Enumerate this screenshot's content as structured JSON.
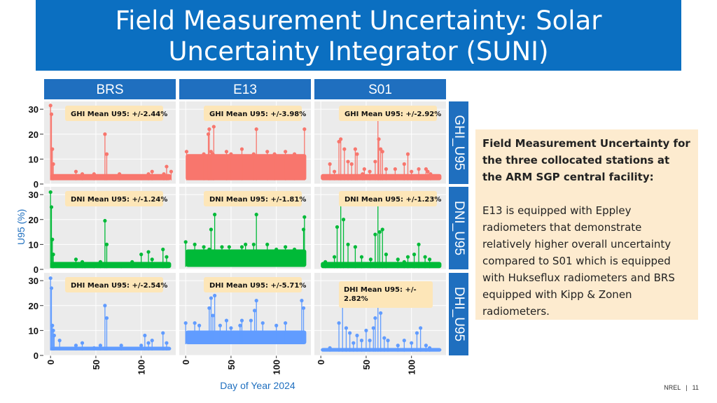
{
  "slide": {
    "title_line1": "Field Measurement Uncertainty: Solar",
    "title_line2": "Uncertainty Integrator (SUNI)",
    "note_heading": "Field Measurement Uncertainty for the three collocated stations at the ARM SGP central facility:",
    "note_body": "E13 is equipped with Eppley radiometers that demonstrate relatively higher overall uncertainty compared to S01 which is equipped with Hukseflux radiometers and BRS equipped with Kipp & Zonen radiometers.",
    "footer_org": "NREL",
    "footer_sep": "|",
    "footer_page": "11"
  },
  "colors": {
    "title_bg": "#0b6fc1",
    "strip_bg": "#1f6fbf",
    "panel_bg": "#ebebeb",
    "GHI": "#f8766d",
    "DNI": "#00ba38",
    "DHI": "#619cff",
    "label_bg": "#fde6b8",
    "note_bg": "#fdebcf"
  },
  "chart_data": {
    "type": "scatter",
    "xlabel": "Day of Year 2024",
    "ylabel": "U95 (%)",
    "ylim": [
      0,
      32
    ],
    "yticks": [
      0,
      10,
      20,
      30
    ],
    "xlim": [
      -4,
      135
    ],
    "xticks": [
      0,
      50,
      100
    ],
    "columns": [
      "BRS",
      "E13",
      "S01"
    ],
    "rows": [
      "GHI_U95",
      "DNI_U95",
      "DHI_U95"
    ],
    "grid": true,
    "facets": [
      {
        "column": "BRS",
        "row": "GHI_U95",
        "label": "GHI Mean U95: +/-2.44%",
        "baseline": [
          1.5,
          4
        ],
        "spikes": [
          [
            0,
            31.5
          ],
          [
            1,
            28
          ],
          [
            2,
            14
          ],
          [
            3,
            8
          ],
          [
            28,
            5
          ],
          [
            35,
            4
          ],
          [
            48,
            4
          ],
          [
            60,
            20
          ],
          [
            62,
            12
          ],
          [
            76,
            4
          ],
          [
            100,
            3
          ],
          [
            108,
            4
          ],
          [
            112,
            5
          ],
          [
            125,
            4
          ],
          [
            128,
            7
          ],
          [
            133,
            5
          ]
        ]
      },
      {
        "column": "E13",
        "row": "GHI_U95",
        "label": "GHI Mean U95: +/-3.98%",
        "baseline": [
          1.5,
          12
        ],
        "spikes": [
          [
            1,
            13
          ],
          [
            20,
            12
          ],
          [
            25,
            20
          ],
          [
            26,
            22
          ],
          [
            28,
            13
          ],
          [
            30,
            12
          ],
          [
            31,
            23
          ],
          [
            45,
            13
          ],
          [
            50,
            12
          ],
          [
            62,
            14
          ],
          [
            75,
            12
          ],
          [
            78,
            22
          ],
          [
            90,
            13
          ],
          [
            98,
            12
          ],
          [
            110,
            13
          ],
          [
            120,
            12
          ],
          [
            131,
            22
          ]
        ]
      },
      {
        "column": "S01",
        "row": "GHI_U95",
        "label": "GHI Mean U95: +/-2.92%",
        "baseline": [
          1.5,
          4
        ],
        "spikes": [
          [
            10,
            8
          ],
          [
            15,
            5
          ],
          [
            20,
            17
          ],
          [
            22,
            18
          ],
          [
            26,
            14
          ],
          [
            30,
            9
          ],
          [
            34,
            8
          ],
          [
            38,
            14
          ],
          [
            40,
            12
          ],
          [
            46,
            4
          ],
          [
            48,
            6
          ],
          [
            54,
            5
          ],
          [
            60,
            9
          ],
          [
            63,
            28
          ],
          [
            64,
            18
          ],
          [
            66,
            14
          ],
          [
            68,
            13
          ],
          [
            72,
            6
          ],
          [
            82,
            6
          ],
          [
            92,
            8
          ],
          [
            96,
            12
          ],
          [
            100,
            5
          ],
          [
            108,
            6
          ],
          [
            116,
            6
          ],
          [
            118,
            5
          ],
          [
            121,
            4
          ]
        ]
      },
      {
        "column": "BRS",
        "row": "DNI_U95",
        "label": "DNI Mean U95: +/-1.24%",
        "baseline": [
          0.5,
          3
        ],
        "spikes": [
          [
            0,
            31
          ],
          [
            1,
            25
          ],
          [
            2,
            12
          ],
          [
            3,
            6
          ],
          [
            28,
            4
          ],
          [
            35,
            3
          ],
          [
            38,
            2
          ],
          [
            48,
            2
          ],
          [
            55,
            3
          ],
          [
            60,
            19.5
          ],
          [
            62,
            10
          ],
          [
            78,
            2
          ],
          [
            90,
            3
          ],
          [
            100,
            6
          ],
          [
            108,
            7
          ],
          [
            112,
            4
          ],
          [
            124,
            8
          ],
          [
            128,
            5
          ]
        ]
      },
      {
        "column": "E13",
        "row": "DNI_U95",
        "label": "DNI Mean U95: +/-1.81%",
        "baseline": [
          1,
          8
        ],
        "spikes": [
          [
            0,
            11
          ],
          [
            10,
            10
          ],
          [
            20,
            9
          ],
          [
            26,
            8
          ],
          [
            28,
            16
          ],
          [
            32,
            22
          ],
          [
            40,
            9
          ],
          [
            48,
            9
          ],
          [
            55,
            7
          ],
          [
            62,
            9
          ],
          [
            66,
            10
          ],
          [
            75,
            10
          ],
          [
            78,
            22
          ],
          [
            90,
            10
          ],
          [
            100,
            8
          ],
          [
            110,
            9
          ],
          [
            120,
            8
          ],
          [
            130,
            16
          ],
          [
            131,
            21
          ]
        ]
      },
      {
        "column": "S01",
        "row": "DNI_U95",
        "label": "DNI Mean U95: +/-1.23%",
        "baseline": [
          0.5,
          3
        ],
        "spikes": [
          [
            5,
            3
          ],
          [
            15,
            5
          ],
          [
            18,
            17
          ],
          [
            22,
            28
          ],
          [
            25,
            20
          ],
          [
            30,
            10
          ],
          [
            38,
            9
          ],
          [
            45,
            5
          ],
          [
            55,
            4
          ],
          [
            60,
            14
          ],
          [
            63,
            26
          ],
          [
            65,
            15
          ],
          [
            68,
            16
          ],
          [
            72,
            6
          ],
          [
            85,
            4
          ],
          [
            92,
            3
          ],
          [
            96,
            5
          ],
          [
            103,
            6
          ],
          [
            108,
            10
          ],
          [
            115,
            5
          ],
          [
            120,
            4
          ]
        ]
      },
      {
        "column": "BRS",
        "row": "DHI_U95",
        "label": "DHI Mean U95: +/-2.54%",
        "baseline": [
          2,
          3.5
        ],
        "spikes": [
          [
            0,
            31
          ],
          [
            1,
            27
          ],
          [
            2,
            12
          ],
          [
            3,
            10
          ],
          [
            4,
            8
          ],
          [
            10,
            6
          ],
          [
            28,
            4
          ],
          [
            35,
            5
          ],
          [
            48,
            3
          ],
          [
            55,
            4
          ],
          [
            60,
            20
          ],
          [
            62,
            15
          ],
          [
            78,
            4
          ],
          [
            100,
            4
          ],
          [
            104,
            8
          ],
          [
            108,
            5
          ],
          [
            112,
            6
          ],
          [
            124,
            9
          ],
          [
            128,
            5
          ]
        ]
      },
      {
        "column": "E13",
        "row": "DHI_U95",
        "label": "DHI Mean U95: +/-5.71%",
        "baseline": [
          4.5,
          10
        ],
        "spikes": [
          [
            0,
            13
          ],
          [
            10,
            13
          ],
          [
            15,
            12
          ],
          [
            26,
            19
          ],
          [
            28,
            23
          ],
          [
            30,
            16
          ],
          [
            32,
            24
          ],
          [
            38,
            12
          ],
          [
            45,
            14
          ],
          [
            50,
            11
          ],
          [
            60,
            12
          ],
          [
            62,
            14
          ],
          [
            72,
            14
          ],
          [
            76,
            18
          ],
          [
            78,
            22
          ],
          [
            85,
            13
          ],
          [
            100,
            12
          ],
          [
            110,
            13
          ],
          [
            128,
            22
          ],
          [
            130,
            19
          ]
        ]
      },
      {
        "column": "S01",
        "row": "DHI_U95",
        "label": "DHI Mean U95: +/- 2.82%",
        "baseline": [
          1.5,
          3
        ],
        "spikes": [
          [
            10,
            3
          ],
          [
            20,
            13
          ],
          [
            24,
            22
          ],
          [
            28,
            11
          ],
          [
            32,
            9
          ],
          [
            36,
            5
          ],
          [
            40,
            8
          ],
          [
            45,
            6
          ],
          [
            50,
            10
          ],
          [
            54,
            6
          ],
          [
            58,
            11
          ],
          [
            60,
            15
          ],
          [
            63,
            24
          ],
          [
            66,
            17
          ],
          [
            70,
            7
          ],
          [
            74,
            6
          ],
          [
            85,
            4
          ],
          [
            92,
            6
          ],
          [
            100,
            5
          ],
          [
            106,
            9
          ],
          [
            110,
            11
          ],
          [
            116,
            4
          ],
          [
            120,
            3
          ]
        ]
      }
    ]
  }
}
